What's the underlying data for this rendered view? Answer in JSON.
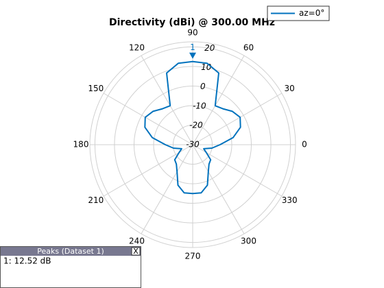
{
  "chart_data": {
    "type": "polar",
    "title": "Directivity (dBi) @ 300.00 MHz",
    "theta": [
      0,
      10,
      20,
      30,
      40,
      50,
      60,
      70,
      80,
      90,
      100,
      110,
      120,
      130,
      140,
      150,
      160,
      170,
      180,
      190,
      200,
      210,
      220,
      230,
      240,
      250,
      260,
      270,
      280,
      290,
      300,
      310,
      320,
      330,
      340,
      350,
      360
    ],
    "series": [
      {
        "name": "az=0°",
        "color": "#0072bd",
        "values": [
          -16,
          -9,
          -4,
          -2,
          -3.5,
          -6,
          -7,
          9,
          12.3,
          12.52,
          12.3,
          9,
          -7,
          -6,
          -3.5,
          -2,
          -4,
          -9,
          -16,
          -20,
          -24,
          -22,
          -18,
          -17,
          -14,
          -8,
          -5,
          -5,
          -5,
          -8,
          -14,
          -17,
          -18,
          -22,
          -24,
          -20,
          -16
        ]
      }
    ],
    "rlim": [
      -30,
      22.6
    ],
    "rticks": [
      -30,
      -20,
      -10,
      0,
      10,
      20
    ],
    "thetaticks": [
      0,
      30,
      60,
      90,
      120,
      150,
      180,
      210,
      240,
      270,
      300,
      330
    ],
    "grid": true,
    "legend": "upper right",
    "markers": [
      {
        "label": "1",
        "theta": 90,
        "value": 12.52
      }
    ]
  },
  "peak_table": {
    "title": "Peaks (Dataset 1)",
    "close": "X",
    "rows": [
      "1: 12.52 dB"
    ]
  }
}
